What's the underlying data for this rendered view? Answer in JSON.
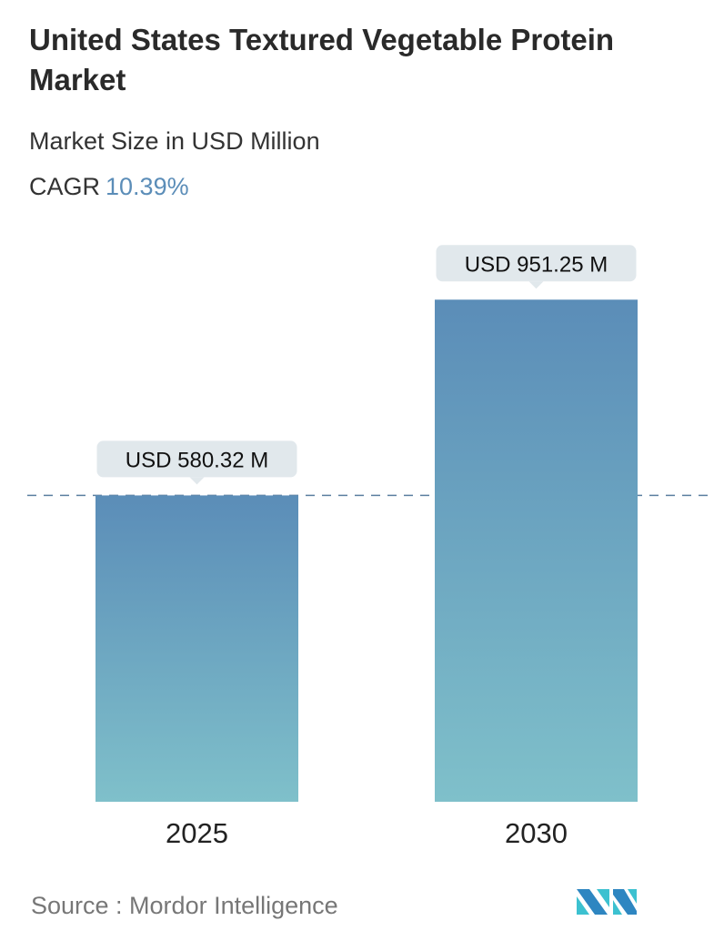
{
  "title": "United States Textured Vegetable Protein Market",
  "subtitle": "Market Size in USD Million",
  "cagr_label": "CAGR",
  "cagr_value": "10.39%",
  "source": "Source :  Mordor Intelligence",
  "logo_text": "Mordor Intelligence",
  "colors": {
    "bar_top": "#5b8db8",
    "bar_bottom": "#7fbfca",
    "label_bg": "#e1e8ec",
    "cagr": "#5b8db8",
    "dash": "#5b7fa0"
  },
  "chart_data": {
    "type": "bar",
    "categories": [
      "2025",
      "2030"
    ],
    "values": [
      580.32,
      951.25
    ],
    "data_labels": [
      "USD 580.32 M",
      "USD 951.25 M"
    ],
    "title": "United States Textured Vegetable Protein Market",
    "ylabel": "Market Size in USD Million",
    "grid": false,
    "reference_line": 580.32
  }
}
